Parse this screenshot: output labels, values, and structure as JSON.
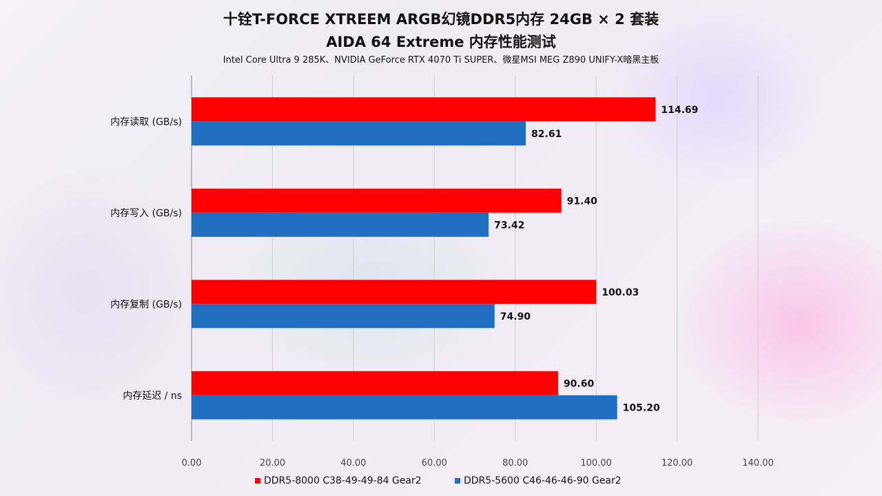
{
  "title": "十铨T-FORCE XTREEM ARGB幻镜DDR5内存 24GB × 2 套装",
  "subtitle": "AIDA 64 Extreme 内存性能测试",
  "config": "Intel Core Ultra 9 285K、NVIDIA GeForce RTX 4070 Ti SUPER、微星MSI MEG Z890 UNIFY-X暗黑主板",
  "colors": {
    "series1": "#ff0000",
    "series2": "#1f6ebf"
  },
  "chart_data": {
    "type": "bar",
    "orientation": "horizontal",
    "categories": [
      "内存读取 (GB/s)",
      "内存写入 (GB/s)",
      "内存复制 (GB/s)",
      "内存延迟 / ns"
    ],
    "series": [
      {
        "name": "DDR5-8000 C38-49-49-84 Gear2",
        "values": [
          114.69,
          91.4,
          100.03,
          90.6
        ]
      },
      {
        "name": "DDR5-5600 C46-46-46-90 Gear2",
        "values": [
          82.61,
          73.42,
          74.9,
          105.2
        ]
      }
    ],
    "value_labels": [
      [
        "114.69",
        "91.40",
        "100.03",
        "90.60"
      ],
      [
        "82.61",
        "73.42",
        "74.90",
        "105.20"
      ]
    ],
    "xlim": [
      0,
      140
    ],
    "xticks": [
      "0.00",
      "20.00",
      "40.00",
      "60.00",
      "80.00",
      "100.00",
      "120.00",
      "140.00"
    ],
    "grid": true,
    "legend": "bottom"
  }
}
